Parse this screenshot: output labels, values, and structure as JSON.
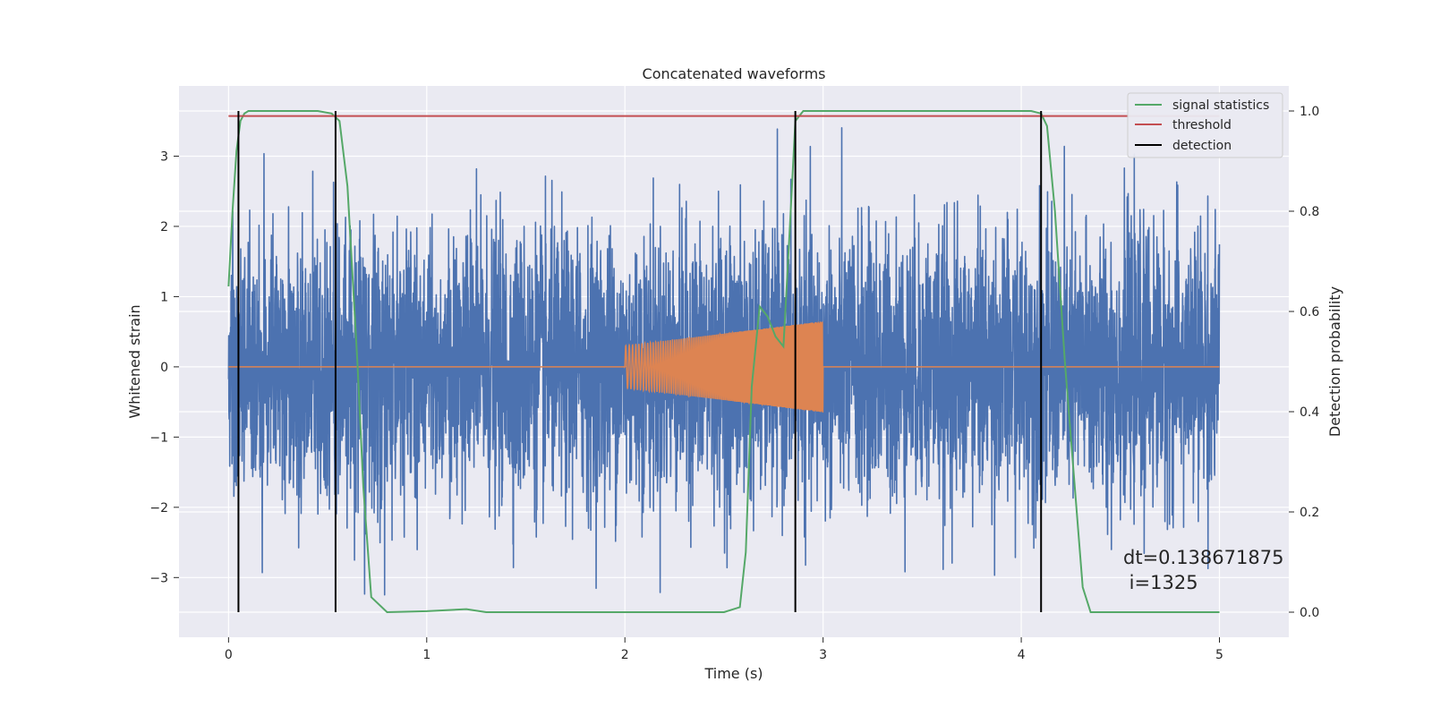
{
  "chart_data": {
    "type": "line",
    "title": "Concatenated waveforms",
    "xlabel": "Time (s)",
    "ylabel_left": "Whitened strain",
    "ylabel_right": "Detection probability",
    "xlim": [
      -0.25,
      5.35
    ],
    "ylim_left": [
      -3.85,
      4.0
    ],
    "ylim_right": [
      -0.05,
      1.05
    ],
    "xticks": [
      0,
      1,
      2,
      3,
      4,
      5
    ],
    "yticks_left": [
      -3,
      -2,
      -1,
      0,
      1,
      2,
      3
    ],
    "yticks_right": [
      0.0,
      0.2,
      0.4,
      0.6,
      0.8,
      1.0
    ],
    "ytick_labels_left": [
      "−3",
      "−2",
      "−1",
      "0",
      "1",
      "2",
      "3"
    ],
    "ytick_labels_right": [
      "0.0",
      "0.2",
      "0.4",
      "0.6",
      "0.8",
      "1.0"
    ],
    "grid": true,
    "legend_position": "top-right",
    "noise": {
      "x_range": [
        0,
        5
      ],
      "approx_core_amplitude": 0.8,
      "approx_peak_amplitude": 3.6,
      "color": "#4c72b0"
    },
    "injected_signal": {
      "x_range": [
        2.0,
        3.0
      ],
      "amplitude_start": 0.3,
      "amplitude_end": 0.65,
      "color": "#dd8452"
    },
    "series": [
      {
        "name": "signal statistics",
        "axis": "right",
        "color": "#55a868",
        "x": [
          0.0,
          0.02,
          0.04,
          0.06,
          0.08,
          0.1,
          0.45,
          0.52,
          0.56,
          0.6,
          0.65,
          0.68,
          0.72,
          0.8,
          1.0,
          1.2,
          1.3,
          2.5,
          2.58,
          2.61,
          2.64,
          2.68,
          2.72,
          2.76,
          2.8,
          2.83,
          2.86,
          2.9,
          4.05,
          4.1,
          4.13,
          4.17,
          4.22,
          4.27,
          4.31,
          4.35,
          4.5,
          5.0
        ],
        "y": [
          0.65,
          0.8,
          0.92,
          0.98,
          0.995,
          1.0,
          1.0,
          0.995,
          0.98,
          0.85,
          0.5,
          0.25,
          0.03,
          0.0,
          0.002,
          0.006,
          0.0,
          0.0,
          0.01,
          0.12,
          0.45,
          0.61,
          0.59,
          0.55,
          0.53,
          0.75,
          0.98,
          1.0,
          1.0,
          0.995,
          0.97,
          0.8,
          0.5,
          0.25,
          0.05,
          0.0,
          0.0,
          0.0
        ]
      },
      {
        "name": "threshold",
        "axis": "right",
        "color": "#c44e52",
        "x": [
          0,
          5
        ],
        "y": [
          0.99,
          0.99
        ]
      },
      {
        "name": "detection",
        "axis": "right",
        "color": "#000000",
        "x_positions": [
          0.05,
          0.54,
          2.86,
          4.1
        ],
        "y_range": [
          0.0,
          1.0
        ]
      }
    ],
    "annotations": [
      "dt=0.138671875",
      " i=1325"
    ]
  }
}
